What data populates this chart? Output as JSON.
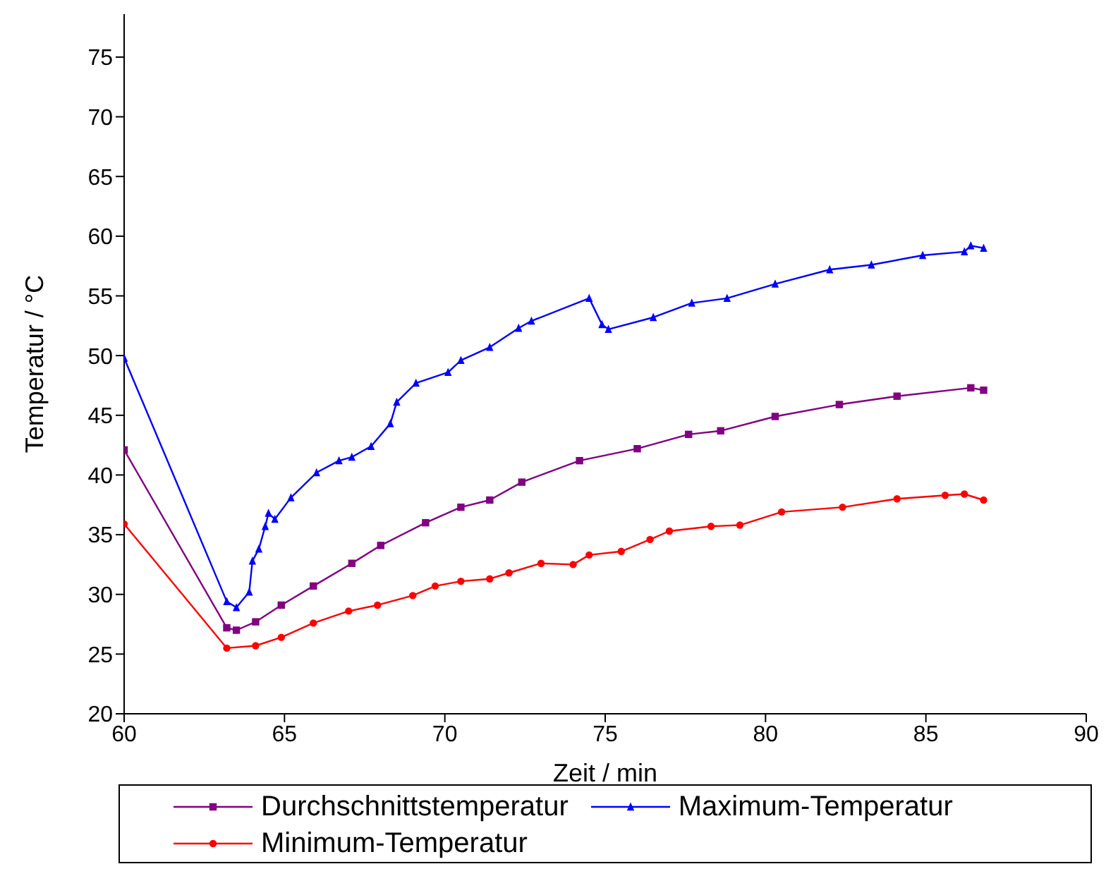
{
  "chart_data": {
    "type": "line",
    "xlabel": "Zeit / min",
    "ylabel": "Temperatur / °C",
    "xlim": [
      60,
      90
    ],
    "xticks": [
      60,
      65,
      70,
      75,
      80,
      85,
      90
    ],
    "ylim": [
      20,
      78.6
    ],
    "yticks": [
      20,
      25,
      30,
      35,
      40,
      45,
      50,
      55,
      60,
      65,
      70,
      75
    ],
    "grid": false,
    "legend": "bottom",
    "line_style": "solid",
    "series": [
      {
        "name": "Durchschnittstemperatur",
        "color": "#800080",
        "marker": "square",
        "x": [
          60,
          63.2,
          63.5,
          64.1,
          64.9,
          65.9,
          67.1,
          68.0,
          69.4,
          70.5,
          71.4,
          72.4,
          74.2,
          76.0,
          77.6,
          78.6,
          80.3,
          82.3,
          84.1,
          86.4,
          86.8
        ],
        "values": [
          42.1,
          27.2,
          27.0,
          27.7,
          29.1,
          30.7,
          32.6,
          34.1,
          36.0,
          37.3,
          37.9,
          39.4,
          41.2,
          42.2,
          43.4,
          43.7,
          44.9,
          45.9,
          46.6,
          47.3,
          47.1
        ]
      },
      {
        "name": "Maximum-Temperatur",
        "color": "#0000ff",
        "marker": "triangle",
        "x": [
          60,
          63.2,
          63.5,
          63.9,
          64.0,
          64.2,
          64.4,
          64.5,
          64.7,
          65.2,
          66.0,
          66.7,
          67.1,
          67.7,
          68.3,
          68.5,
          69.1,
          70.1,
          70.5,
          71.4,
          72.3,
          72.7,
          74.5,
          74.9,
          75.1,
          76.5,
          77.7,
          78.8,
          80.3,
          82.0,
          83.3,
          84.9,
          86.2,
          86.4,
          86.8
        ],
        "values": [
          49.8,
          29.4,
          28.9,
          30.2,
          32.8,
          33.8,
          35.7,
          36.8,
          36.3,
          38.1,
          40.2,
          41.2,
          41.5,
          42.4,
          44.3,
          46.1,
          47.7,
          48.6,
          49.6,
          50.7,
          52.3,
          52.9,
          54.8,
          52.6,
          52.2,
          53.2,
          54.4,
          54.8,
          56.0,
          57.2,
          57.6,
          58.4,
          58.7,
          59.2,
          59.0
        ]
      },
      {
        "name": "Minimum-Temperatur",
        "color": "#ff0000",
        "marker": "circle",
        "x": [
          60,
          63.2,
          64.1,
          64.9,
          65.9,
          67.0,
          67.9,
          69.0,
          69.7,
          70.5,
          71.4,
          72.0,
          73.0,
          74.0,
          74.5,
          75.5,
          76.4,
          77.0,
          78.3,
          79.2,
          80.5,
          82.4,
          84.1,
          85.6,
          86.2,
          86.8
        ],
        "values": [
          35.9,
          25.5,
          25.7,
          26.4,
          27.6,
          28.6,
          29.1,
          29.9,
          30.7,
          31.1,
          31.3,
          31.8,
          32.6,
          32.5,
          33.3,
          33.6,
          34.6,
          35.3,
          35.7,
          35.8,
          36.9,
          37.3,
          38.0,
          38.3,
          38.4,
          37.9
        ]
      }
    ]
  }
}
